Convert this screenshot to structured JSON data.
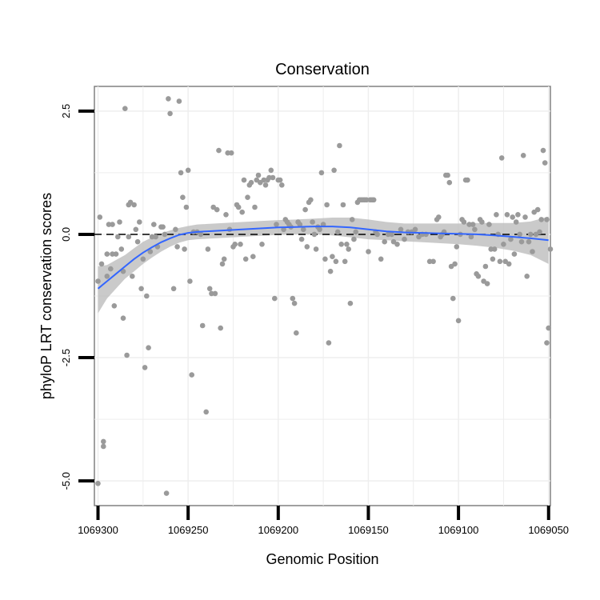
{
  "chart_data": {
    "type": "scatter",
    "title": "Conservation",
    "xlabel": "Genomic Position",
    "ylabel": "phyloP LRT conservation scores",
    "x_reversed": true,
    "xlim": [
      1069302,
      1069049
    ],
    "ylim": [
      -5.5,
      3.0
    ],
    "x_ticks": [
      1069300,
      1069250,
      1069200,
      1069150,
      1069100,
      1069050
    ],
    "x_tick_labels": [
      "1069300",
      "1069250",
      "1069200",
      "1069150",
      "1069100",
      "1069050"
    ],
    "y_ticks": [
      2.5,
      0.0,
      -2.5,
      -5.0
    ],
    "y_tick_labels": [
      "2.5",
      "0.0",
      "-2.5",
      "-5.0"
    ],
    "grid": true,
    "reference_line": {
      "y": 0.0,
      "style": "dashed"
    },
    "point_color": "#9a9a9a",
    "smooth_color": "#3366ff",
    "band_color": "#bdbdbd",
    "points": [
      [
        1069300,
        -0.95
      ],
      [
        1069300,
        -5.05
      ],
      [
        1069299,
        0.35
      ],
      [
        1069298,
        -0.6
      ],
      [
        1069297,
        -4.2
      ],
      [
        1069297,
        -4.3
      ],
      [
        1069295,
        -0.85
      ],
      [
        1069295,
        -0.4
      ],
      [
        1069294,
        0.2
      ],
      [
        1069293,
        -0.7
      ],
      [
        1069292,
        -0.4
      ],
      [
        1069292,
        0.2
      ],
      [
        1069291,
        -1.45
      ],
      [
        1069290,
        -0.4
      ],
      [
        1069289,
        -0.05
      ],
      [
        1069288,
        0.25
      ],
      [
        1069287,
        -0.3
      ],
      [
        1069286,
        -0.75
      ],
      [
        1069286,
        -1.7
      ],
      [
        1069285,
        2.55
      ],
      [
        1069284,
        -2.45
      ],
      [
        1069283,
        -0.05
      ],
      [
        1069283,
        0.6
      ],
      [
        1069282,
        0.65
      ],
      [
        1069281,
        -0.85
      ],
      [
        1069280,
        0.6
      ],
      [
        1069279,
        0.1
      ],
      [
        1069278,
        -0.15
      ],
      [
        1069277,
        0.25
      ],
      [
        1069276,
        -1.1
      ],
      [
        1069275,
        -0.5
      ],
      [
        1069274,
        -2.7
      ],
      [
        1069273,
        -1.25
      ],
      [
        1069272,
        -2.3
      ],
      [
        1069271,
        -0.35
      ],
      [
        1069270,
        -0.05
      ],
      [
        1069269,
        0.2
      ],
      [
        1069268,
        -0.05
      ],
      [
        1069267,
        -0.25
      ],
      [
        1069265,
        0.15
      ],
      [
        1069264,
        0.15
      ],
      [
        1069263,
        0.0
      ],
      [
        1069262,
        -5.25
      ],
      [
        1069261,
        2.75
      ],
      [
        1069260,
        2.45
      ],
      [
        1069258,
        -1.1
      ],
      [
        1069257,
        0.1
      ],
      [
        1069256,
        -0.25
      ],
      [
        1069255,
        2.7
      ],
      [
        1069254,
        1.25
      ],
      [
        1069253,
        0.75
      ],
      [
        1069252,
        -0.3
      ],
      [
        1069251,
        0.55
      ],
      [
        1069250,
        1.3
      ],
      [
        1069249,
        -0.95
      ],
      [
        1069248,
        -2.85
      ],
      [
        1069247,
        0.05
      ],
      [
        1069245,
        0.05
      ],
      [
        1069243,
        0.0
      ],
      [
        1069242,
        -1.85
      ],
      [
        1069240,
        -3.6
      ],
      [
        1069239,
        -0.3
      ],
      [
        1069238,
        -1.1
      ],
      [
        1069237,
        -1.2
      ],
      [
        1069236,
        0.55
      ],
      [
        1069235,
        -1.2
      ],
      [
        1069234,
        0.5
      ],
      [
        1069233,
        1.7
      ],
      [
        1069232,
        -1.9
      ],
      [
        1069231,
        -0.6
      ],
      [
        1069230,
        -0.5
      ],
      [
        1069229,
        0.4
      ],
      [
        1069228,
        1.65
      ],
      [
        1069227,
        0.1
      ],
      [
        1069226,
        1.65
      ],
      [
        1069225,
        -0.25
      ],
      [
        1069224,
        -0.2
      ],
      [
        1069223,
        0.6
      ],
      [
        1069222,
        0.55
      ],
      [
        1069221,
        -0.2
      ],
      [
        1069220,
        0.45
      ],
      [
        1069219,
        1.1
      ],
      [
        1069218,
        -0.5
      ],
      [
        1069217,
        0.75
      ],
      [
        1069216,
        1.0
      ],
      [
        1069215,
        1.05
      ],
      [
        1069214,
        -0.45
      ],
      [
        1069213,
        0.55
      ],
      [
        1069212,
        1.1
      ],
      [
        1069211,
        1.2
      ],
      [
        1069210,
        1.05
      ],
      [
        1069209,
        -0.2
      ],
      [
        1069208,
        1.1
      ],
      [
        1069207,
        1.0
      ],
      [
        1069206,
        1.1
      ],
      [
        1069205,
        1.15
      ],
      [
        1069204,
        1.3
      ],
      [
        1069203,
        1.15
      ],
      [
        1069202,
        -1.3
      ],
      [
        1069201,
        0.2
      ],
      [
        1069200,
        1.1
      ],
      [
        1069199,
        1.1
      ],
      [
        1069198,
        1.0
      ],
      [
        1069197,
        0.1
      ],
      [
        1069196,
        0.3
      ],
      [
        1069195,
        0.25
      ],
      [
        1069194,
        0.2
      ],
      [
        1069193,
        0.15
      ],
      [
        1069192,
        -1.3
      ],
      [
        1069191,
        -1.4
      ],
      [
        1069190,
        -2.0
      ],
      [
        1069189,
        0.25
      ],
      [
        1069188,
        0.2
      ],
      [
        1069187,
        -0.1
      ],
      [
        1069186,
        0.1
      ],
      [
        1069185,
        0.5
      ],
      [
        1069184,
        -0.25
      ],
      [
        1069183,
        0.65
      ],
      [
        1069182,
        0.7
      ],
      [
        1069181,
        0.25
      ],
      [
        1069180,
        0.0
      ],
      [
        1069179,
        -0.3
      ],
      [
        1069178,
        0.15
      ],
      [
        1069177,
        0.1
      ],
      [
        1069176,
        1.25
      ],
      [
        1069175,
        0.2
      ],
      [
        1069174,
        -0.5
      ],
      [
        1069173,
        0.6
      ],
      [
        1069172,
        -2.2
      ],
      [
        1069171,
        -0.75
      ],
      [
        1069170,
        -0.45
      ],
      [
        1069169,
        1.3
      ],
      [
        1069168,
        -0.55
      ],
      [
        1069167,
        0.05
      ],
      [
        1069166,
        1.8
      ],
      [
        1069165,
        -0.2
      ],
      [
        1069164,
        0.6
      ],
      [
        1069163,
        -0.55
      ],
      [
        1069162,
        -0.2
      ],
      [
        1069161,
        -0.3
      ],
      [
        1069160,
        -1.4
      ],
      [
        1069159,
        0.3
      ],
      [
        1069158,
        -0.1
      ],
      [
        1069157,
        0.05
      ],
      [
        1069156,
        0.65
      ],
      [
        1069155,
        0.7
      ],
      [
        1069154,
        0.7
      ],
      [
        1069153,
        0.7
      ],
      [
        1069152,
        0.7
      ],
      [
        1069151,
        0.7
      ],
      [
        1069150,
        -0.35
      ],
      [
        1069149,
        0.7
      ],
      [
        1069148,
        0.7
      ],
      [
        1069147,
        0.7
      ],
      [
        1069146,
        0.05
      ],
      [
        1069145,
        0.0
      ],
      [
        1069143,
        -0.5
      ],
      [
        1069141,
        -0.15
      ],
      [
        1069139,
        0.0
      ],
      [
        1069137,
        0.0
      ],
      [
        1069136,
        -0.15
      ],
      [
        1069134,
        -0.2
      ],
      [
        1069132,
        0.1
      ],
      [
        1069130,
        -0.1
      ],
      [
        1069128,
        0.05
      ],
      [
        1069126,
        0.05
      ],
      [
        1069124,
        0.1
      ],
      [
        1069122,
        -0.05
      ],
      [
        1069120,
        0.0
      ],
      [
        1069118,
        0.0
      ],
      [
        1069116,
        -0.55
      ],
      [
        1069114,
        -0.55
      ],
      [
        1069112,
        0.3
      ],
      [
        1069111,
        0.35
      ],
      [
        1069110,
        -0.05
      ],
      [
        1069109,
        0.0
      ],
      [
        1069108,
        0.05
      ],
      [
        1069107,
        1.2
      ],
      [
        1069106,
        1.2
      ],
      [
        1069105,
        1.05
      ],
      [
        1069104,
        -0.65
      ],
      [
        1069103,
        -1.3
      ],
      [
        1069102,
        -0.6
      ],
      [
        1069101,
        -0.25
      ],
      [
        1069100,
        -1.75
      ],
      [
        1069099,
        0.0
      ],
      [
        1069098,
        0.3
      ],
      [
        1069097,
        0.25
      ],
      [
        1069096,
        1.1
      ],
      [
        1069095,
        1.1
      ],
      [
        1069094,
        0.2
      ],
      [
        1069093,
        -0.05
      ],
      [
        1069092,
        0.2
      ],
      [
        1069091,
        0.1
      ],
      [
        1069090,
        -0.8
      ],
      [
        1069089,
        -0.85
      ],
      [
        1069088,
        0.3
      ],
      [
        1069087,
        0.25
      ],
      [
        1069086,
        -0.95
      ],
      [
        1069085,
        -0.65
      ],
      [
        1069084,
        -1.0
      ],
      [
        1069083,
        0.2
      ],
      [
        1069082,
        -0.3
      ],
      [
        1069081,
        -0.5
      ],
      [
        1069080,
        -0.3
      ],
      [
        1069079,
        0.4
      ],
      [
        1069078,
        0.0
      ],
      [
        1069077,
        -0.55
      ],
      [
        1069076,
        1.55
      ],
      [
        1069075,
        -0.2
      ],
      [
        1069074,
        -0.55
      ],
      [
        1069073,
        0.4
      ],
      [
        1069072,
        -0.6
      ],
      [
        1069071,
        -0.1
      ],
      [
        1069070,
        0.35
      ],
      [
        1069069,
        -0.4
      ],
      [
        1069068,
        0.25
      ],
      [
        1069067,
        0.4
      ],
      [
        1069066,
        0.0
      ],
      [
        1069065,
        -0.15
      ],
      [
        1069064,
        1.6
      ],
      [
        1069063,
        0.35
      ],
      [
        1069062,
        -0.85
      ],
      [
        1069061,
        -0.15
      ],
      [
        1069060,
        0.0
      ],
      [
        1069059,
        -0.35
      ],
      [
        1069058,
        0.45
      ],
      [
        1069057,
        0.0
      ],
      [
        1069056,
        0.5
      ],
      [
        1069055,
        0.05
      ],
      [
        1069054,
        0.3
      ],
      [
        1069053,
        1.7
      ],
      [
        1069052,
        1.45
      ],
      [
        1069051,
        0.3
      ],
      [
        1069051,
        -2.2
      ],
      [
        1069050,
        -1.9
      ],
      [
        1069049,
        -0.3
      ]
    ],
    "smooth": {
      "x": [
        1069300,
        1069295,
        1069290,
        1069285,
        1069280,
        1069275,
        1069270,
        1069265,
        1069260,
        1069255,
        1069250,
        1069245,
        1069240,
        1069235,
        1069230,
        1069225,
        1069220,
        1069210,
        1069200,
        1069190,
        1069180,
        1069170,
        1069160,
        1069150,
        1069140,
        1069130,
        1069120,
        1069110,
        1069100,
        1069090,
        1069080,
        1069070,
        1069060,
        1069050
      ],
      "y": [
        -1.1,
        -0.95,
        -0.8,
        -0.65,
        -0.5,
        -0.37,
        -0.26,
        -0.16,
        -0.08,
        -0.01,
        0.03,
        0.05,
        0.06,
        0.07,
        0.08,
        0.09,
        0.1,
        0.12,
        0.14,
        0.15,
        0.16,
        0.16,
        0.14,
        0.1,
        0.06,
        0.04,
        0.03,
        0.02,
        0.01,
        0.0,
        -0.02,
        -0.05,
        -0.08,
        -0.12
      ],
      "lower": [
        -1.6,
        -1.3,
        -1.1,
        -0.9,
        -0.75,
        -0.6,
        -0.47,
        -0.35,
        -0.25,
        -0.17,
        -0.12,
        -0.1,
        -0.09,
        -0.08,
        -0.07,
        -0.06,
        -0.05,
        -0.03,
        -0.01,
        0.0,
        0.0,
        -0.02,
        -0.06,
        -0.1,
        -0.12,
        -0.14,
        -0.16,
        -0.18,
        -0.2,
        -0.23,
        -0.27,
        -0.33,
        -0.42,
        -0.6
      ],
      "upper": [
        -0.65,
        -0.62,
        -0.52,
        -0.42,
        -0.28,
        -0.15,
        -0.06,
        0.02,
        0.08,
        0.13,
        0.17,
        0.2,
        0.21,
        0.22,
        0.23,
        0.24,
        0.25,
        0.27,
        0.29,
        0.3,
        0.32,
        0.34,
        0.34,
        0.3,
        0.25,
        0.22,
        0.22,
        0.22,
        0.22,
        0.23,
        0.23,
        0.23,
        0.26,
        0.36
      ]
    }
  }
}
